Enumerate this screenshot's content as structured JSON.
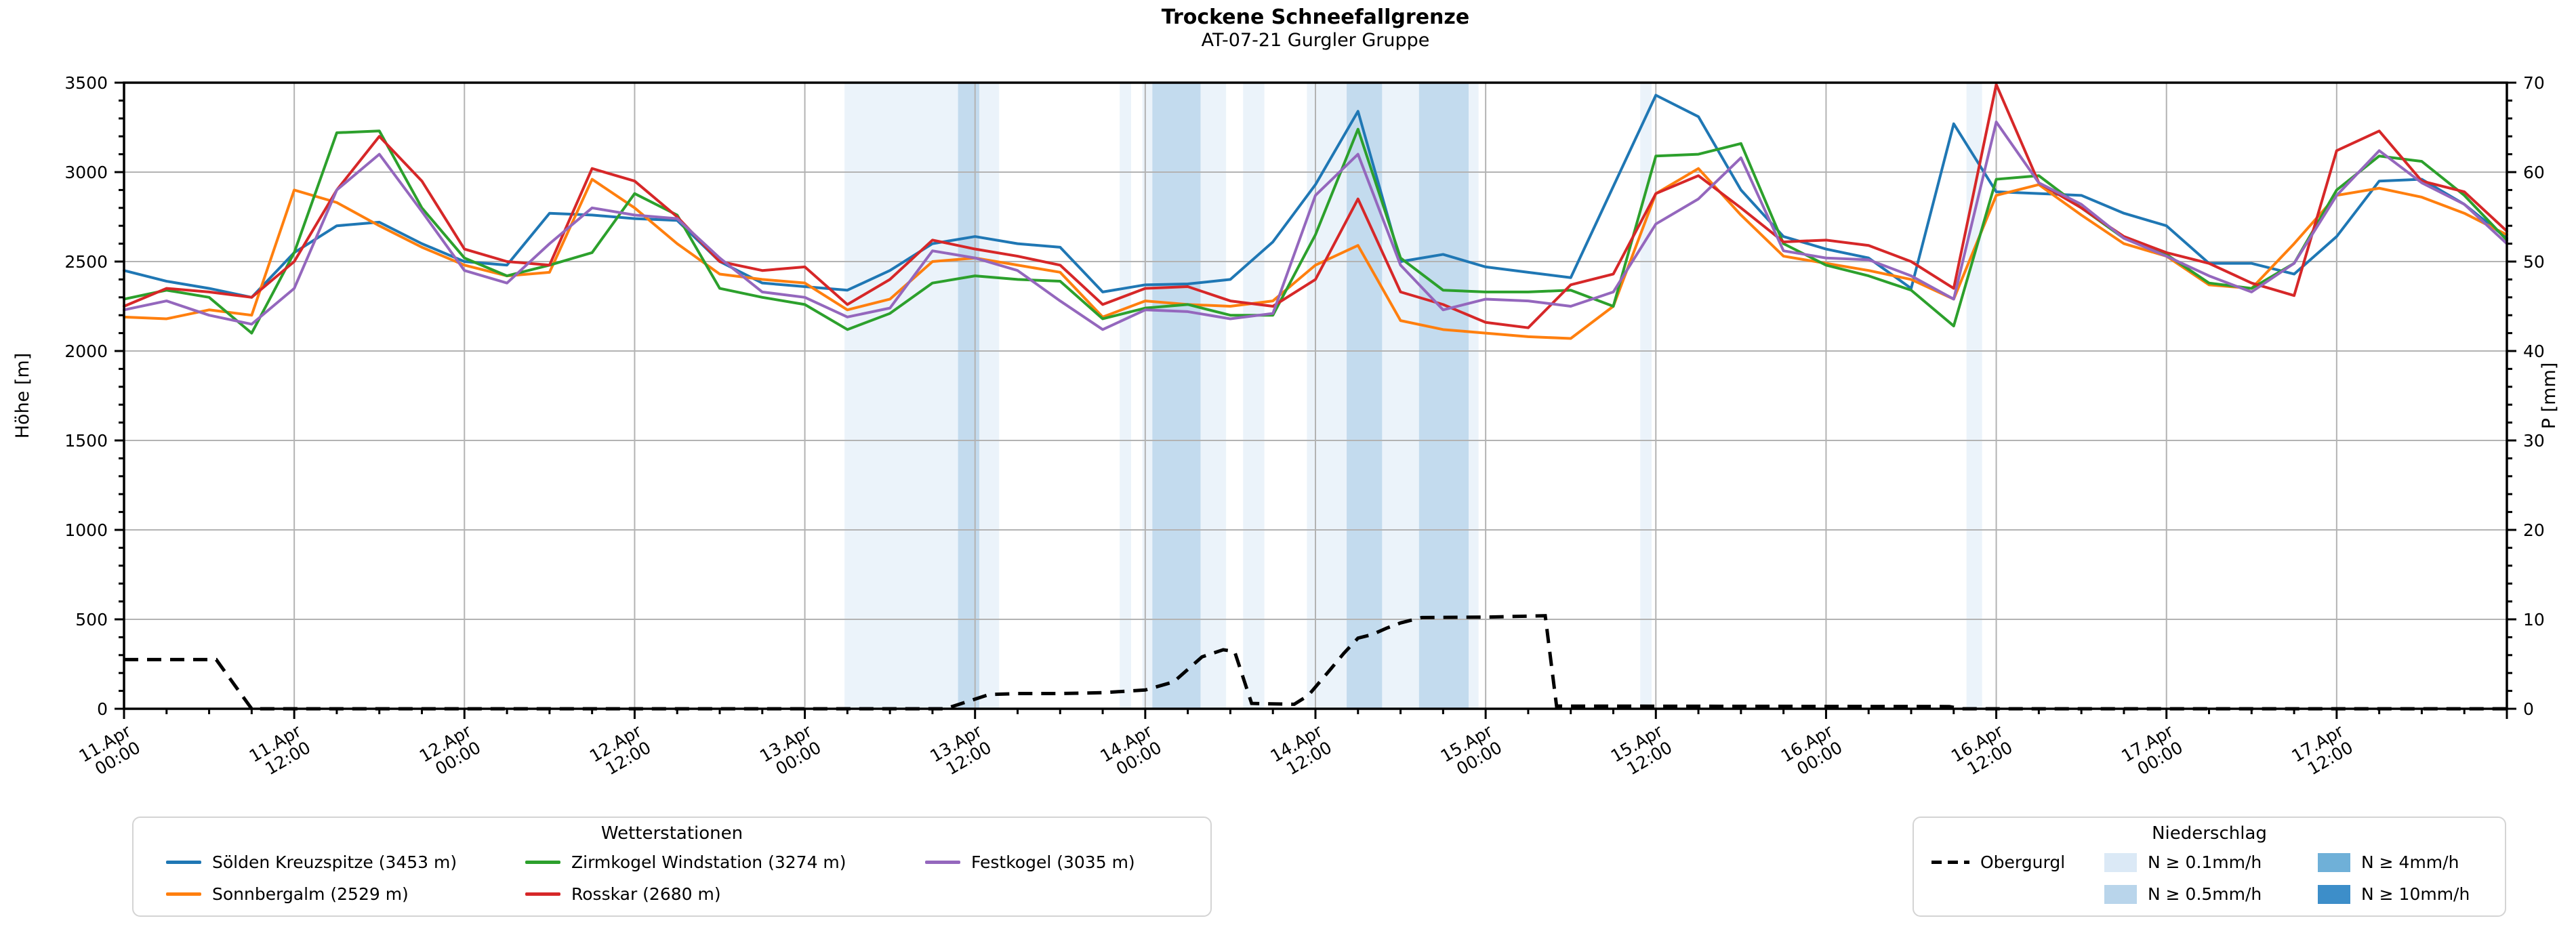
{
  "title": "Trockene Schneefallgrenze",
  "subtitle": "AT-07-21 Gurgler Gruppe",
  "axes": {
    "y_left_label": "Höhe [m]",
    "y_right_label": "P [mm]",
    "y_left_ticks": [
      0,
      500,
      1000,
      1500,
      2000,
      2500,
      3000,
      3500
    ],
    "y_right_ticks": [
      0,
      10,
      20,
      30,
      40,
      50,
      60,
      70
    ],
    "x_ticks": [
      {
        "t": 0,
        "date": "11.Apr",
        "time": "00:00"
      },
      {
        "t": 12,
        "date": "11.Apr",
        "time": "12:00"
      },
      {
        "t": 24,
        "date": "12.Apr",
        "time": "00:00"
      },
      {
        "t": 36,
        "date": "12.Apr",
        "time": "12:00"
      },
      {
        "t": 48,
        "date": "13.Apr",
        "time": "00:00"
      },
      {
        "t": 60,
        "date": "13.Apr",
        "time": "12:00"
      },
      {
        "t": 72,
        "date": "14.Apr",
        "time": "00:00"
      },
      {
        "t": 84,
        "date": "14.Apr",
        "time": "12:00"
      },
      {
        "t": 96,
        "date": "15.Apr",
        "time": "00:00"
      },
      {
        "t": 108,
        "date": "15.Apr",
        "time": "12:00"
      },
      {
        "t": 120,
        "date": "16.Apr",
        "time": "00:00"
      },
      {
        "t": 132,
        "date": "16.Apr",
        "time": "12:00"
      },
      {
        "t": 144,
        "date": "17.Apr",
        "time": "00:00"
      },
      {
        "t": 156,
        "date": "17.Apr",
        "time": "12:00"
      }
    ]
  },
  "legend_stations": {
    "title": "Wetterstationen",
    "columns": [
      [
        {
          "id": "soelden-kreuzspitze",
          "label": "Sölden Kreuzspitze (3453 m)",
          "color": "#1f77b4"
        },
        {
          "id": "sonnbergalm",
          "label": "Sonnbergalm (2529 m)",
          "color": "#ff7f0e"
        }
      ],
      [
        {
          "id": "zirmkogel-windstation",
          "label": "Zirmkogel Windstation (3274 m)",
          "color": "#2ca02c"
        },
        {
          "id": "rosskar",
          "label": "Rosskar (2680 m)",
          "color": "#d62728"
        }
      ],
      [
        {
          "id": "festkogel",
          "label": "Festkogel (3035 m)",
          "color": "#9467bd"
        }
      ]
    ]
  },
  "legend_precip": {
    "title": "Niederschlag",
    "line_item": {
      "id": "obergurgl",
      "label": "Obergurgl",
      "color": "#000000"
    },
    "patch_columns": [
      [
        {
          "label": "N ≥ 0.1mm/h",
          "color": "#dbe9f6"
        },
        {
          "label": "N ≥ 0.5mm/h",
          "color": "#b9d5eb"
        }
      ],
      [
        {
          "label": "N ≥ 4mm/h",
          "color": "#6fb0d8"
        },
        {
          "label": "N ≥ 10mm/h",
          "color": "#3d8ec9"
        }
      ]
    ]
  },
  "chart_data": {
    "type": "line",
    "title": "Trockene Schneefallgrenze",
    "subtitle": "AT-07-21 Gurgler Gruppe",
    "x_unit": "hours since 11.Apr 00:00",
    "x_range": [
      0,
      168
    ],
    "x_step_hours": 3,
    "ylim_left": [
      0,
      3500
    ],
    "ylim_right": [
      0,
      70
    ],
    "grid": true,
    "series": [
      {
        "id": "soelden-kreuzspitze",
        "name": "Sölden Kreuzspitze (3453 m)",
        "color": "#1f77b4",
        "axis": "left",
        "values": [
          2450,
          2390,
          2350,
          2300,
          2550,
          2700,
          2720,
          2600,
          2500,
          2480,
          2770,
          2760,
          2740,
          2730,
          2500,
          2380,
          2360,
          2340,
          2450,
          2600,
          2640,
          2600,
          2580,
          2330,
          2370,
          2375,
          2400,
          2610,
          2930,
          3340,
          2500,
          2540,
          2470,
          2440,
          2410,
          2920,
          3430,
          3310,
          2900,
          2640,
          2570,
          2520,
          2350,
          3270,
          2890,
          2880,
          2870,
          2770,
          2700,
          2490,
          2490,
          2430,
          2640,
          2950,
          2960,
          2820,
          2630
        ]
      },
      {
        "id": "sonnbergalm",
        "name": "Sonnbergalm (2529 m)",
        "color": "#ff7f0e",
        "axis": "left",
        "values": [
          2190,
          2180,
          2230,
          2200,
          2900,
          2830,
          2700,
          2580,
          2480,
          2420,
          2440,
          2960,
          2800,
          2600,
          2430,
          2400,
          2380,
          2230,
          2290,
          2500,
          2520,
          2480,
          2440,
          2190,
          2280,
          2260,
          2250,
          2280,
          2480,
          2590,
          2170,
          2120,
          2100,
          2080,
          2070,
          2250,
          2880,
          3020,
          2760,
          2530,
          2490,
          2450,
          2400,
          2290,
          2870,
          2930,
          2760,
          2600,
          2530,
          2370,
          2350,
          2600,
          2870,
          2910,
          2860,
          2770,
          2650
        ]
      },
      {
        "id": "zirmkogel-windstation",
        "name": "Zirmkogel Windstation (3274 m)",
        "color": "#2ca02c",
        "axis": "left",
        "values": [
          2290,
          2340,
          2300,
          2100,
          2550,
          3220,
          3230,
          2800,
          2520,
          2420,
          2480,
          2550,
          2880,
          2760,
          2350,
          2300,
          2260,
          2120,
          2210,
          2380,
          2420,
          2400,
          2390,
          2180,
          2240,
          2260,
          2200,
          2200,
          2650,
          3240,
          2520,
          2340,
          2330,
          2330,
          2340,
          2250,
          3090,
          3100,
          3160,
          2600,
          2480,
          2420,
          2340,
          2140,
          2960,
          2980,
          2800,
          2630,
          2540,
          2380,
          2350,
          2490,
          2900,
          3090,
          3060,
          2870,
          2620
        ]
      },
      {
        "id": "rosskar",
        "name": "Rosskar (2680 m)",
        "color": "#d62728",
        "axis": "left",
        "values": [
          2250,
          2350,
          2330,
          2300,
          2500,
          2900,
          3200,
          2950,
          2570,
          2500,
          2480,
          3020,
          2950,
          2750,
          2500,
          2450,
          2470,
          2260,
          2400,
          2620,
          2570,
          2530,
          2480,
          2260,
          2350,
          2360,
          2280,
          2250,
          2400,
          2850,
          2330,
          2260,
          2160,
          2130,
          2370,
          2430,
          2880,
          2980,
          2800,
          2610,
          2620,
          2590,
          2500,
          2350,
          3490,
          2940,
          2800,
          2640,
          2550,
          2490,
          2380,
          2310,
          3120,
          3230,
          2950,
          2890,
          2670
        ]
      },
      {
        "id": "festkogel",
        "name": "Festkogel (3035 m)",
        "color": "#9467bd",
        "axis": "left",
        "values": [
          2230,
          2280,
          2200,
          2150,
          2350,
          2900,
          3100,
          2780,
          2450,
          2380,
          2600,
          2800,
          2760,
          2740,
          2520,
          2330,
          2300,
          2190,
          2240,
          2560,
          2520,
          2450,
          2280,
          2120,
          2230,
          2220,
          2180,
          2210,
          2870,
          3100,
          2480,
          2230,
          2290,
          2280,
          2250,
          2330,
          2710,
          2850,
          3080,
          2560,
          2520,
          2510,
          2420,
          2290,
          3280,
          2940,
          2820,
          2630,
          2530,
          2420,
          2330,
          2490,
          2870,
          3120,
          2940,
          2820,
          2600
        ]
      }
    ],
    "precip_line": {
      "id": "obergurgl",
      "name": "Obergurgl",
      "color": "#000000",
      "axis": "right",
      "style": "dashed",
      "points": [
        [
          0,
          5.5
        ],
        [
          6.5,
          5.5
        ],
        [
          9,
          0
        ],
        [
          58,
          0
        ],
        [
          58.3,
          0.2
        ],
        [
          61,
          1.6
        ],
        [
          63,
          1.7
        ],
        [
          66,
          1.7
        ],
        [
          69,
          1.8
        ],
        [
          72,
          2.1
        ],
        [
          74,
          3.0
        ],
        [
          76,
          5.8
        ],
        [
          77.5,
          6.6
        ],
        [
          78.3,
          6.4
        ],
        [
          79.5,
          0.6
        ],
        [
          82.5,
          0.5
        ],
        [
          83.5,
          1.5
        ],
        [
          85,
          4.3
        ],
        [
          86,
          6.2
        ],
        [
          87,
          7.9
        ],
        [
          88,
          8.3
        ],
        [
          89,
          9.0
        ],
        [
          90,
          9.6
        ],
        [
          91.5,
          10.2
        ],
        [
          96,
          10.25
        ],
        [
          100.2,
          10.4
        ],
        [
          101,
          0.3
        ],
        [
          128.7,
          0.25
        ],
        [
          129.5,
          0
        ],
        [
          168,
          0
        ]
      ]
    },
    "precip_bands": [
      {
        "start": 50.8,
        "end": 58.8,
        "level": "0.1"
      },
      {
        "start": 58.8,
        "end": 60.3,
        "level": "0.5"
      },
      {
        "start": 60.3,
        "end": 61.7,
        "level": "0.1"
      },
      {
        "start": 70.2,
        "end": 71.0,
        "level": "0.1"
      },
      {
        "start": 71.8,
        "end": 72.5,
        "level": "0.1"
      },
      {
        "start": 72.5,
        "end": 75.9,
        "level": "0.5"
      },
      {
        "start": 75.9,
        "end": 77.7,
        "level": "0.1"
      },
      {
        "start": 78.9,
        "end": 80.4,
        "level": "0.1"
      },
      {
        "start": 83.4,
        "end": 86.2,
        "level": "0.1"
      },
      {
        "start": 86.2,
        "end": 88.7,
        "level": "0.5"
      },
      {
        "start": 88.7,
        "end": 91.3,
        "level": "0.1"
      },
      {
        "start": 91.3,
        "end": 94.8,
        "level": "0.5"
      },
      {
        "start": 94.8,
        "end": 95.5,
        "level": "0.1"
      },
      {
        "start": 106.9,
        "end": 107.7,
        "level": "0.1"
      },
      {
        "start": 129.9,
        "end": 131.0,
        "level": "0.1"
      }
    ],
    "band_colors": {
      "0.1": "#dbe9f6",
      "0.5": "#b9d5eb",
      "4": "#6fb0d8",
      "10": "#3d8ec9"
    },
    "band_opacity": {
      "0.1": 0.55,
      "0.5": 0.85
    },
    "grid_color": "#b3b3b3",
    "legend_position": "below"
  }
}
